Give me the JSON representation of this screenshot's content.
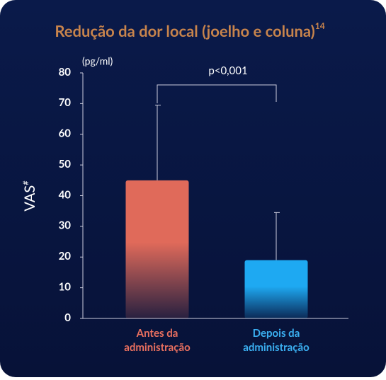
{
  "chart_data": {
    "type": "bar",
    "title": "Redução da dor local (joelho e coluna)",
    "title_note": "14",
    "y_unit": "(pg/ml)",
    "y_label": "VAS",
    "y_label_note": "#",
    "annotation": "p<0,001",
    "categories": [
      [
        "Antes da",
        "administração"
      ],
      [
        "Depois da",
        "administração"
      ]
    ],
    "values": [
      45,
      19
    ],
    "errors": [
      24.5,
      15.5
    ],
    "colors": [
      "#e06a5a",
      "#1ea9f2"
    ],
    "label_colors": [
      "#ea705f",
      "#3bb0f2"
    ],
    "ylim": [
      0,
      80
    ],
    "yticks": [
      0,
      10,
      20,
      30,
      40,
      50,
      60,
      70,
      80
    ]
  }
}
